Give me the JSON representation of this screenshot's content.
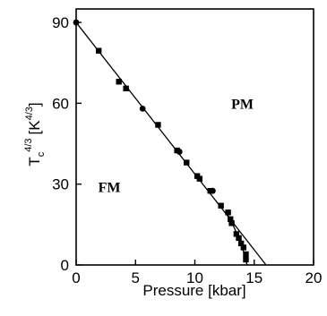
{
  "chart_data": {
    "type": "scatter",
    "xlabel": "Pressure [kbar]",
    "ylabel": "T",
    "ylabel_sub": "c",
    "ylabel_sup": "4/3",
    "ylabel_unit": "[K",
    "ylabel_unit_sup": "4/3",
    "ylabel_unit_close": "]",
    "xlim": [
      0,
      20
    ],
    "ylim": [
      0,
      95
    ],
    "x_ticks": [
      0,
      5,
      10,
      15,
      20
    ],
    "x_tick_labels": [
      "0",
      "5",
      "10",
      "15",
      "20"
    ],
    "y_ticks": [
      0,
      30,
      60,
      90
    ],
    "y_tick_labels": [
      "0",
      "30",
      "60",
      "90"
    ],
    "grid": false,
    "annotations": [
      {
        "text": "PM",
        "x": 14.0,
        "y": 58
      },
      {
        "text": "FM",
        "x": 2.8,
        "y": 27
      }
    ],
    "circles": [
      {
        "x": 0.0,
        "y": 90.0
      },
      {
        "x": 5.6,
        "y": 58.0
      },
      {
        "x": 8.7,
        "y": 42.0
      },
      {
        "x": 11.5,
        "y": 27.5
      }
    ],
    "squares": [
      {
        "x": 1.9,
        "y": 79.5
      },
      {
        "x": 3.6,
        "y": 68.0
      },
      {
        "x": 4.2,
        "y": 65.5
      },
      {
        "x": 6.9,
        "y": 52.0
      },
      {
        "x": 8.5,
        "y": 42.5
      },
      {
        "x": 9.3,
        "y": 38.0
      },
      {
        "x": 10.2,
        "y": 33.0
      },
      {
        "x": 10.4,
        "y": 32.0
      },
      {
        "x": 11.3,
        "y": 27.5
      },
      {
        "x": 12.2,
        "y": 22.0
      },
      {
        "x": 12.8,
        "y": 19.5
      },
      {
        "x": 13.0,
        "y": 17.0
      },
      {
        "x": 13.1,
        "y": 15.5
      },
      {
        "x": 13.5,
        "y": 11.5
      },
      {
        "x": 13.7,
        "y": 10.0
      },
      {
        "x": 13.9,
        "y": 8.0
      },
      {
        "x": 14.1,
        "y": 6.5
      },
      {
        "x": 14.3,
        "y": 4.0
      },
      {
        "x": 14.3,
        "y": 2.0
      }
    ],
    "fit_line": [
      {
        "x": 0,
        "y": 90
      },
      {
        "x": 16.0,
        "y": 0
      }
    ],
    "curve": [
      {
        "x": 12.6,
        "y": 20.0
      },
      {
        "x": 13.2,
        "y": 15.0
      },
      {
        "x": 13.7,
        "y": 10.0
      },
      {
        "x": 14.1,
        "y": 5.0
      },
      {
        "x": 14.4,
        "y": 0.0
      }
    ]
  }
}
